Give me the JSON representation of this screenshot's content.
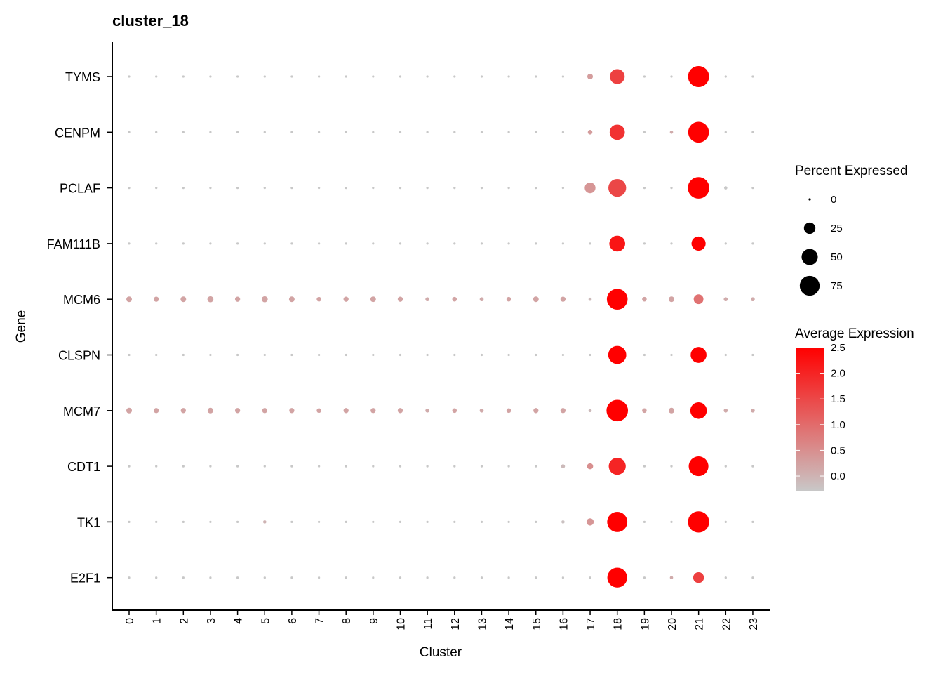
{
  "chart_data": {
    "type": "dot",
    "title": "cluster_18",
    "xlabel": "Cluster",
    "ylabel": "Gene",
    "clusters": [
      "0",
      "1",
      "2",
      "3",
      "4",
      "5",
      "6",
      "7",
      "8",
      "9",
      "10",
      "11",
      "12",
      "13",
      "14",
      "15",
      "16",
      "17",
      "18",
      "19",
      "20",
      "21",
      "22",
      "23"
    ],
    "genes": [
      "TYMS",
      "CENPM",
      "PCLAF",
      "FAM111B",
      "MCM6",
      "CLSPN",
      "MCM7",
      "CDT1",
      "TK1",
      "E2F1"
    ],
    "pct_expressed": [
      [
        1,
        1,
        1,
        1,
        1,
        1,
        1,
        1,
        1,
        1,
        1,
        1,
        1,
        1,
        1,
        1,
        1,
        6,
        42,
        1,
        1,
        85,
        1,
        1
      ],
      [
        1,
        1,
        1,
        1,
        1,
        1,
        1,
        1,
        1,
        1,
        1,
        1,
        1,
        1,
        1,
        1,
        1,
        4,
        44,
        1,
        2,
        82,
        1,
        1
      ],
      [
        1,
        1,
        1,
        1,
        1,
        1,
        1,
        1,
        1,
        1,
        1,
        1,
        1,
        1,
        1,
        1,
        1,
        22,
        60,
        1,
        1,
        88,
        2,
        1
      ],
      [
        1,
        1,
        1,
        1,
        1,
        1,
        1,
        1,
        1,
        1,
        1,
        1,
        1,
        1,
        1,
        1,
        1,
        1,
        48,
        1,
        1,
        38,
        1,
        1
      ],
      [
        6,
        5,
        6,
        7,
        5,
        7,
        6,
        4,
        5,
        6,
        5,
        3,
        4,
        3,
        4,
        6,
        5,
        2,
        82,
        4,
        6,
        18,
        3,
        3
      ],
      [
        1,
        1,
        1,
        1,
        1,
        1,
        1,
        1,
        1,
        1,
        1,
        1,
        1,
        1,
        1,
        1,
        1,
        1,
        62,
        1,
        1,
        48,
        1,
        1
      ],
      [
        6,
        5,
        5,
        6,
        5,
        5,
        5,
        4,
        5,
        5,
        5,
        3,
        4,
        3,
        4,
        5,
        5,
        2,
        88,
        4,
        6,
        52,
        3,
        3
      ],
      [
        1,
        1,
        1,
        1,
        1,
        1,
        1,
        1,
        1,
        1,
        1,
        1,
        1,
        1,
        1,
        1,
        3,
        7,
        55,
        1,
        1,
        74,
        1,
        1
      ],
      [
        1,
        1,
        1,
        1,
        1,
        2,
        1,
        1,
        1,
        1,
        1,
        1,
        1,
        1,
        1,
        1,
        2,
        10,
        78,
        1,
        1,
        86,
        1,
        1
      ],
      [
        1,
        1,
        1,
        1,
        1,
        1,
        1,
        1,
        1,
        1,
        1,
        1,
        1,
        1,
        1,
        1,
        1,
        1,
        75,
        1,
        2,
        22,
        1,
        1
      ]
    ],
    "avg_expression": [
      [
        -0.3,
        -0.3,
        -0.3,
        -0.3,
        -0.3,
        -0.3,
        -0.3,
        -0.3,
        -0.3,
        -0.3,
        -0.3,
        -0.3,
        -0.3,
        -0.3,
        -0.3,
        -0.3,
        -0.3,
        0.3,
        1.6,
        -0.3,
        -0.3,
        2.5,
        -0.3,
        -0.3
      ],
      [
        -0.3,
        -0.3,
        -0.3,
        -0.3,
        -0.3,
        -0.3,
        -0.3,
        -0.3,
        -0.3,
        -0.3,
        -0.3,
        -0.3,
        -0.3,
        -0.3,
        -0.3,
        -0.3,
        -0.3,
        0.3,
        1.8,
        -0.3,
        0.1,
        2.5,
        -0.3,
        -0.3
      ],
      [
        -0.3,
        -0.3,
        -0.3,
        -0.3,
        -0.3,
        -0.3,
        -0.3,
        -0.3,
        -0.3,
        -0.3,
        -0.3,
        -0.3,
        -0.3,
        -0.3,
        -0.3,
        -0.3,
        -0.3,
        0.4,
        1.5,
        -0.3,
        -0.3,
        2.5,
        -0.3,
        -0.3
      ],
      [
        -0.3,
        -0.3,
        -0.3,
        -0.3,
        -0.3,
        -0.3,
        -0.3,
        -0.3,
        -0.3,
        -0.3,
        -0.3,
        -0.3,
        -0.3,
        -0.3,
        -0.3,
        -0.3,
        -0.3,
        -0.3,
        2.2,
        -0.3,
        -0.3,
        2.5,
        -0.3,
        -0.3
      ],
      [
        0.2,
        0.2,
        0.2,
        0.2,
        0.2,
        0.2,
        0.2,
        0.2,
        0.2,
        0.2,
        0.2,
        0.1,
        0.2,
        0.1,
        0.2,
        0.2,
        0.2,
        -0.1,
        2.5,
        0.2,
        0.2,
        0.9,
        0.1,
        0.1
      ],
      [
        -0.3,
        -0.3,
        -0.3,
        -0.3,
        -0.3,
        -0.3,
        -0.3,
        -0.3,
        -0.3,
        -0.3,
        -0.3,
        -0.3,
        -0.3,
        -0.3,
        -0.3,
        -0.3,
        -0.3,
        -0.3,
        2.5,
        -0.3,
        -0.3,
        2.5,
        -0.3,
        -0.3
      ],
      [
        0.2,
        0.2,
        0.2,
        0.2,
        0.2,
        0.2,
        0.2,
        0.2,
        0.2,
        0.2,
        0.2,
        0.1,
        0.2,
        0.1,
        0.2,
        0.2,
        0.2,
        -0.1,
        2.5,
        0.2,
        0.2,
        2.5,
        0.1,
        0.1
      ],
      [
        -0.3,
        -0.3,
        -0.3,
        -0.3,
        -0.3,
        -0.3,
        -0.3,
        -0.3,
        -0.3,
        -0.3,
        -0.3,
        -0.3,
        -0.3,
        -0.3,
        -0.3,
        -0.3,
        -0.1,
        0.5,
        2.0,
        -0.3,
        -0.3,
        2.5,
        -0.3,
        -0.3
      ],
      [
        -0.3,
        -0.3,
        -0.3,
        -0.3,
        -0.3,
        0.0,
        -0.3,
        -0.3,
        -0.3,
        -0.3,
        -0.3,
        -0.3,
        -0.3,
        -0.3,
        -0.3,
        -0.3,
        -0.2,
        0.4,
        2.5,
        -0.3,
        -0.3,
        2.5,
        -0.3,
        -0.3
      ],
      [
        -0.3,
        -0.3,
        -0.3,
        -0.3,
        -0.3,
        -0.3,
        -0.3,
        -0.3,
        -0.3,
        -0.3,
        -0.3,
        -0.3,
        -0.3,
        -0.3,
        -0.3,
        -0.3,
        -0.3,
        -0.3,
        2.5,
        -0.3,
        0.1,
        1.6,
        -0.3,
        -0.3
      ]
    ],
    "legend_size": {
      "title": "Percent Expressed",
      "breaks": [
        0,
        25,
        50,
        75
      ],
      "labels": [
        "0",
        "25",
        "50",
        "75"
      ]
    },
    "legend_color": {
      "title": "Average Expression",
      "breaks": [
        2.5,
        2.0,
        1.5,
        1.0,
        0.5,
        0.0
      ],
      "labels": [
        "2.5",
        "2.0",
        "1.5",
        "1.0",
        "0.5",
        "0.0"
      ],
      "limits": [
        -0.3,
        2.5
      ],
      "low_color": "#c8c8c8",
      "high_color": "#ff0000"
    },
    "legend_position": "right",
    "grid": false
  }
}
